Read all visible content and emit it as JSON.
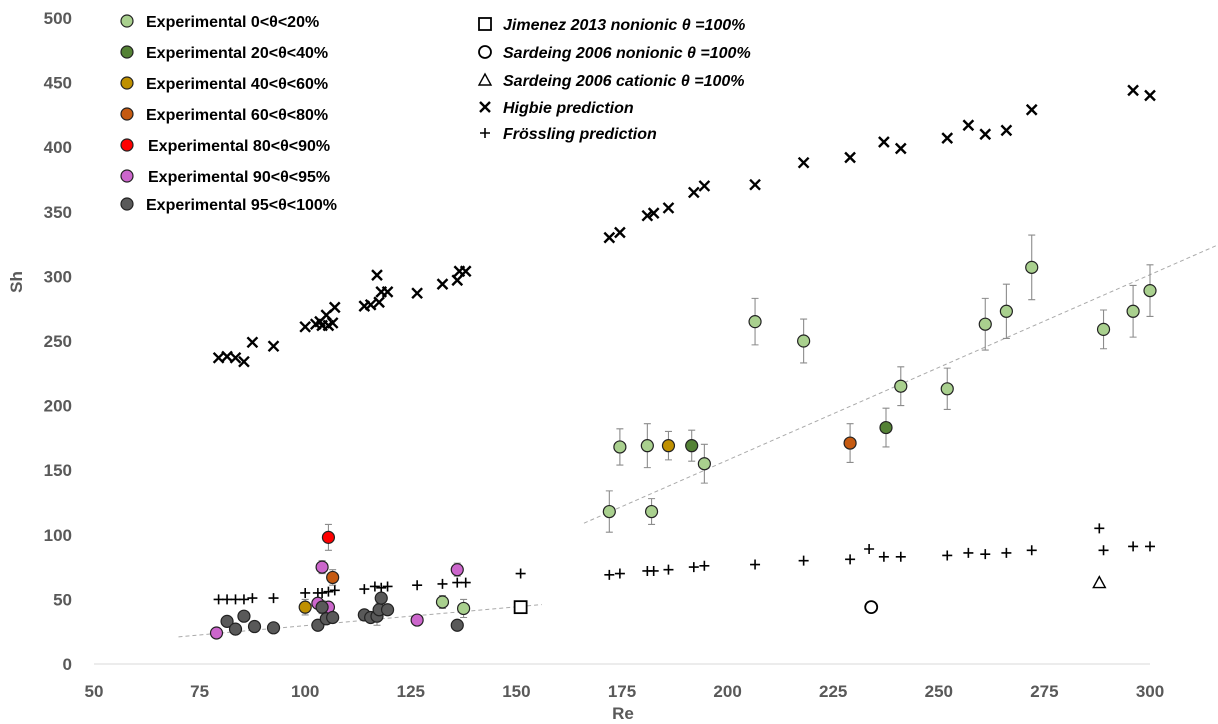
{
  "chart_data": {
    "type": "scatter",
    "xlabel": "Re",
    "ylabel": "Sh",
    "xlim": [
      50,
      300
    ],
    "ylim": [
      0,
      500
    ],
    "xticks": [
      50,
      75,
      100,
      125,
      150,
      175,
      200,
      225,
      250,
      275,
      300
    ],
    "yticks": [
      0,
      50,
      100,
      150,
      200,
      250,
      300,
      350,
      400,
      450,
      500
    ],
    "grid": false,
    "legend_placement": "top-left",
    "series": [
      {
        "name": "Experimental 0<θ<20%",
        "marker": "circle",
        "color": "#a9d08e",
        "points": [
          [
            132.5,
            48
          ],
          [
            137.5,
            43
          ],
          [
            172,
            118
          ],
          [
            174.5,
            168
          ],
          [
            181,
            169
          ],
          [
            182,
            118
          ],
          [
            194.5,
            155
          ],
          [
            206.5,
            265
          ],
          [
            218,
            250
          ],
          [
            241,
            215
          ],
          [
            252,
            213
          ],
          [
            261,
            263
          ],
          [
            266,
            273
          ],
          [
            272,
            307
          ],
          [
            289,
            259
          ],
          [
            296,
            273
          ],
          [
            300,
            289
          ]
        ],
        "errors": [
          5,
          7,
          16,
          14,
          17,
          10,
          15,
          18,
          17,
          15,
          16,
          20,
          21,
          25,
          15,
          20,
          20
        ]
      },
      {
        "name": "Experimental 20<θ<40%",
        "marker": "circle",
        "color": "#548235",
        "points": [
          [
            191.5,
            169
          ],
          [
            237.5,
            183
          ]
        ],
        "errors": [
          12,
          15
        ]
      },
      {
        "name": "Experimental 40<θ<60%",
        "marker": "circle",
        "color": "#bf9000",
        "points": [
          [
            100,
            44
          ],
          [
            186,
            169
          ]
        ],
        "errors": [
          6,
          11
        ]
      },
      {
        "name": "Experimental 60<θ<80%",
        "marker": "circle",
        "color": "#c55a11",
        "points": [
          [
            106.5,
            67
          ],
          [
            229,
            171
          ]
        ],
        "errors": [
          6,
          15
        ]
      },
      {
        "name": "Experimental 80<θ<90%",
        "marker": "circle",
        "color": "#ff0000",
        "points": [
          [
            105.5,
            98
          ]
        ],
        "errors": [
          10
        ]
      },
      {
        "name": "Experimental 90<θ<95%",
        "marker": "circle",
        "color": "#cc66cc",
        "points": [
          [
            79,
            24
          ],
          [
            104,
            75
          ],
          [
            103,
            47
          ],
          [
            105.5,
            44
          ],
          [
            126.5,
            34
          ],
          [
            136,
            73
          ]
        ],
        "errors": [
          0,
          5,
          0,
          0,
          0,
          5
        ]
      },
      {
        "name": "Experimental 95<θ<100%",
        "marker": "circle",
        "color": "#595959",
        "points": [
          [
            81.5,
            33
          ],
          [
            83.5,
            27
          ],
          [
            85.5,
            37
          ],
          [
            88,
            29
          ],
          [
            92.5,
            28
          ],
          [
            103,
            30
          ],
          [
            104,
            44
          ],
          [
            105,
            35
          ],
          [
            106.5,
            36
          ],
          [
            114,
            38
          ],
          [
            115.5,
            36
          ],
          [
            117,
            37
          ],
          [
            117.5,
            42
          ],
          [
            118,
            51
          ],
          [
            119.5,
            42
          ],
          [
            136,
            30
          ]
        ],
        "errors": [
          0,
          0,
          0,
          0,
          0,
          0,
          5,
          0,
          0,
          0,
          0,
          7,
          5,
          4,
          0,
          0
        ]
      },
      {
        "name": "Jimenez 2013 nonionic θ =100%",
        "marker": "square",
        "color": "#ffffff",
        "points": [
          [
            151,
            44
          ]
        ]
      },
      {
        "name": "Sardeing 2006 nonionic θ =100%",
        "marker": "circle-open",
        "color": "#ffffff",
        "points": [
          [
            234,
            44
          ]
        ]
      },
      {
        "name": "Sardeing 2006 cationic θ =100%",
        "marker": "triangle",
        "color": "#ffffff",
        "points": [
          [
            288,
            63
          ]
        ]
      },
      {
        "name": "Higbie prediction",
        "marker": "x",
        "color": "#000000",
        "points": [
          [
            79.5,
            237
          ],
          [
            81.5,
            238
          ],
          [
            83.5,
            237
          ],
          [
            85.5,
            234
          ],
          [
            87.5,
            249
          ],
          [
            92.5,
            246
          ],
          [
            100,
            261
          ],
          [
            102.5,
            263
          ],
          [
            103.5,
            265
          ],
          [
            104,
            262
          ],
          [
            105,
            270
          ],
          [
            105.5,
            262
          ],
          [
            106.5,
            264
          ],
          [
            107,
            276
          ],
          [
            114,
            277
          ],
          [
            115.5,
            278
          ],
          [
            117,
            301
          ],
          [
            117.5,
            280
          ],
          [
            118,
            288
          ],
          [
            119.5,
            288
          ],
          [
            126.5,
            287
          ],
          [
            132.5,
            294
          ],
          [
            136,
            297
          ],
          [
            136.5,
            304
          ],
          [
            138,
            304
          ],
          [
            172,
            330
          ],
          [
            174.5,
            334
          ],
          [
            181,
            347
          ],
          [
            182.5,
            349
          ],
          [
            186,
            353
          ],
          [
            192,
            365
          ],
          [
            194.5,
            370
          ],
          [
            206.5,
            371
          ],
          [
            218,
            388
          ],
          [
            229,
            392
          ],
          [
            237,
            404
          ],
          [
            241,
            399
          ],
          [
            252,
            407
          ],
          [
            257,
            417
          ],
          [
            261,
            410
          ],
          [
            266,
            413
          ],
          [
            272,
            429
          ],
          [
            296,
            444
          ],
          [
            300,
            440
          ]
        ]
      },
      {
        "name": "Frössling prediction",
        "marker": "plus",
        "color": "#000000",
        "points": [
          [
            79.5,
            50
          ],
          [
            81.5,
            50
          ],
          [
            83.5,
            50
          ],
          [
            85.5,
            50
          ],
          [
            87.5,
            51
          ],
          [
            92.5,
            51
          ],
          [
            100,
            55
          ],
          [
            103,
            55
          ],
          [
            104,
            55
          ],
          [
            105.5,
            56
          ],
          [
            107,
            57
          ],
          [
            114,
            58
          ],
          [
            116.5,
            60
          ],
          [
            118,
            59
          ],
          [
            119.5,
            60
          ],
          [
            126.5,
            61
          ],
          [
            132.5,
            62
          ],
          [
            136,
            63
          ],
          [
            138,
            63
          ],
          [
            151,
            70
          ],
          [
            172,
            69
          ],
          [
            174.5,
            70
          ],
          [
            181,
            72
          ],
          [
            182.5,
            72
          ],
          [
            186,
            73
          ],
          [
            192,
            75
          ],
          [
            194.5,
            76
          ],
          [
            206.5,
            77
          ],
          [
            218,
            80
          ],
          [
            229,
            81
          ],
          [
            233.5,
            89
          ],
          [
            237,
            83
          ],
          [
            241,
            83
          ],
          [
            252,
            84
          ],
          [
            257,
            86
          ],
          [
            261,
            85
          ],
          [
            266,
            86
          ],
          [
            272,
            88
          ],
          [
            288,
            105
          ],
          [
            289,
            88
          ],
          [
            296,
            91
          ],
          [
            300,
            91
          ]
        ]
      }
    ],
    "trendlines": [
      {
        "style": "dashed",
        "color": "#aaaaaa",
        "from": [
          70,
          21
        ],
        "to": [
          156,
          46
        ]
      },
      {
        "style": "dashed",
        "color": "#aaaaaa",
        "from": [
          166,
          109
        ],
        "to": [
          320,
          330
        ]
      }
    ]
  }
}
